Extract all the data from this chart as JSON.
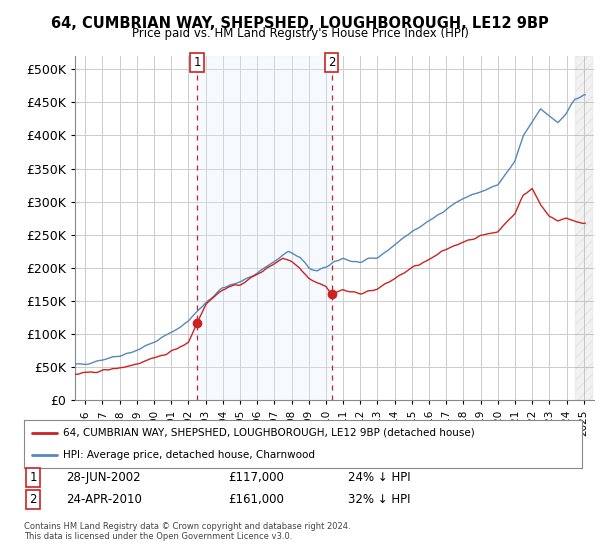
{
  "title1": "64, CUMBRIAN WAY, SHEPSHED, LOUGHBOROUGH, LE12 9BP",
  "title2": "Price paid vs. HM Land Registry's House Price Index (HPI)",
  "yticks": [
    0,
    50000,
    100000,
    150000,
    200000,
    250000,
    300000,
    350000,
    400000,
    450000,
    500000
  ],
  "ylim": [
    0,
    520000
  ],
  "legend_line1": "64, CUMBRIAN WAY, SHEPSHED, LOUGHBOROUGH, LE12 9BP (detached house)",
  "legend_line2": "HPI: Average price, detached house, Charnwood",
  "transaction1_label": "1",
  "transaction2_label": "2",
  "transaction1_date": "28-JUN-2002",
  "transaction1_price": "£117,000",
  "transaction1_hpi": "24% ↓ HPI",
  "transaction2_date": "24-APR-2010",
  "transaction2_price": "£161,000",
  "transaction2_hpi": "32% ↓ HPI",
  "footnote1": "Contains HM Land Registry data © Crown copyright and database right 2024.",
  "footnote2": "This data is licensed under the Open Government Licence v3.0.",
  "hpi_color": "#5588bb",
  "price_color": "#cc2222",
  "vline_color": "#cc2222",
  "shade_color": "#ddeeff",
  "background_color": "#ffffff",
  "plot_bg_color": "#ffffff",
  "transaction1_x": 2002.5,
  "transaction2_x": 2010.33,
  "transaction1_y": 117000,
  "transaction2_y": 161000,
  "x_min": 1995.5,
  "x_max": 2025.5,
  "xtick_years": [
    1996,
    1997,
    1998,
    1999,
    2000,
    2001,
    2002,
    2003,
    2004,
    2005,
    2006,
    2007,
    2008,
    2009,
    2010,
    2011,
    2012,
    2013,
    2014,
    2015,
    2016,
    2017,
    2018,
    2019,
    2020,
    2021,
    2022,
    2023,
    2024,
    2025
  ]
}
